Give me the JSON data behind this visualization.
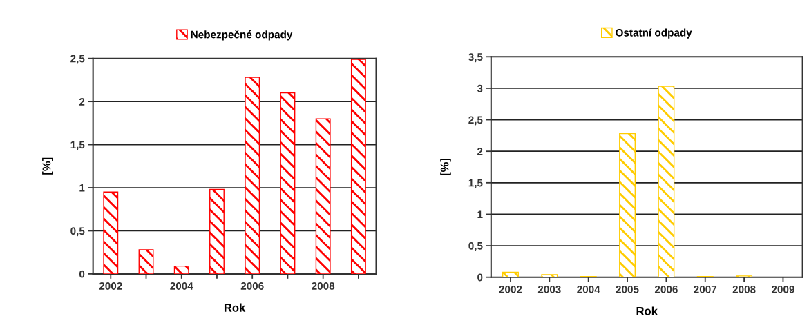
{
  "chart_data": [
    {
      "type": "bar",
      "title": null,
      "xlabel": "Rok",
      "ylabel": "[%]",
      "categories": [
        "2002",
        null,
        "2004",
        null,
        "2006",
        null,
        "2008",
        null
      ],
      "series": [
        {
          "name": "Nebezpečné odpady",
          "color": "#ff0000",
          "values": [
            0.95,
            0.28,
            0.09,
            0.98,
            2.28,
            2.1,
            1.8,
            2.49
          ]
        }
      ],
      "ylim": [
        0,
        2.5
      ],
      "yticks": [
        0,
        {
          "value": 0.5,
          "label": "0,5"
        },
        1,
        {
          "value": 1.5,
          "label": "1,5"
        },
        2,
        {
          "value": 2.5,
          "label": "2,5"
        }
      ],
      "grid": "y",
      "legend": "top"
    },
    {
      "type": "bar",
      "xlabel": "Rok",
      "ylabel": "[%]",
      "categories": [
        "2002",
        "2003",
        "2004",
        "2005",
        "2006",
        "2007",
        "2008",
        "2009"
      ],
      "series": [
        {
          "name": "Ostatní odpady",
          "color": "#ffcc00",
          "values": [
            0.08,
            0.04,
            0.01,
            2.28,
            3.03,
            0.01,
            0.02,
            0.0
          ]
        }
      ],
      "ylim": [
        0,
        3.5
      ],
      "yticks": [
        0,
        {
          "value": 0.5,
          "label": "0,5"
        },
        1,
        {
          "value": 1.5,
          "label": "1,5"
        },
        2,
        {
          "value": 2.5,
          "label": "2,5"
        },
        3,
        {
          "value": 3.5,
          "label": "3,5"
        }
      ],
      "grid": "y",
      "legend": "top"
    }
  ]
}
